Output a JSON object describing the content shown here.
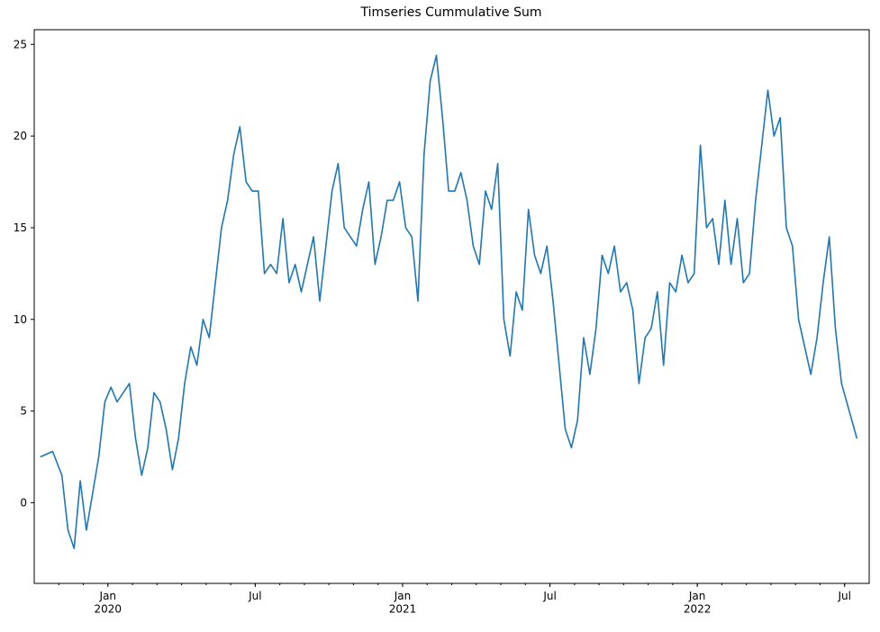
{
  "chart_data": {
    "type": "line",
    "title": "Timseries Cummulative Sum",
    "x": [
      "2019-10",
      "2019-10",
      "2019-11",
      "2019-11",
      "2019-11",
      "2019-11",
      "2019-12",
      "2019-12",
      "2019-12",
      "2019-12",
      "2020-01",
      "2020-01",
      "2020-01",
      "2020-01",
      "2020-02",
      "2020-02",
      "2020-02",
      "2020-02",
      "2020-03",
      "2020-03",
      "2020-03",
      "2020-03",
      "2020-04",
      "2020-04",
      "2020-04",
      "2020-04",
      "2020-05",
      "2020-05",
      "2020-05",
      "2020-05",
      "2020-06",
      "2020-06",
      "2020-06",
      "2020-06",
      "2020-07",
      "2020-07",
      "2020-07",
      "2020-07",
      "2020-08",
      "2020-08",
      "2020-08",
      "2020-08",
      "2020-09",
      "2020-09",
      "2020-09",
      "2020-09",
      "2020-10",
      "2020-10",
      "2020-10",
      "2020-10",
      "2020-11",
      "2020-11",
      "2020-11",
      "2020-11",
      "2020-12",
      "2020-12",
      "2020-12",
      "2020-12",
      "2021-01",
      "2021-01",
      "2021-01",
      "2021-01",
      "2021-02",
      "2021-02",
      "2021-02",
      "2021-02",
      "2021-03",
      "2021-03",
      "2021-03",
      "2021-03",
      "2021-04",
      "2021-04",
      "2021-04",
      "2021-04",
      "2021-05",
      "2021-05",
      "2021-05",
      "2021-05",
      "2021-06",
      "2021-06",
      "2021-06",
      "2021-06",
      "2021-07",
      "2021-07",
      "2021-07",
      "2021-07",
      "2021-08",
      "2021-08",
      "2021-08",
      "2021-08",
      "2021-09",
      "2021-09",
      "2021-09",
      "2021-09",
      "2021-10",
      "2021-10",
      "2021-10",
      "2021-10",
      "2021-11",
      "2021-11",
      "2021-11",
      "2021-11",
      "2021-12",
      "2021-12",
      "2021-12",
      "2021-12",
      "2022-01",
      "2022-01",
      "2022-01",
      "2022-01",
      "2022-02",
      "2022-02",
      "2022-02",
      "2022-02",
      "2022-03",
      "2022-03",
      "2022-03",
      "2022-03",
      "2022-04",
      "2022-04",
      "2022-04",
      "2022-04",
      "2022-05",
      "2022-05",
      "2022-05",
      "2022-05",
      "2022-06",
      "2022-06",
      "2022-06",
      "2022-06",
      "2022-07"
    ],
    "series": [
      {
        "color": "#1f77b4",
        "values": [
          2.5,
          2.8,
          1.5,
          -1.5,
          -2.5,
          1.2,
          -1.5,
          0.5,
          2.5,
          5.5,
          6.3,
          5.5,
          6.0,
          6.5,
          3.5,
          1.5,
          3.0,
          6.0,
          5.5,
          4.0,
          1.8,
          3.5,
          6.5,
          8.5,
          7.5,
          10.0,
          9.0,
          12.0,
          15.0,
          16.5,
          19.0,
          20.5,
          17.5,
          17.0,
          17.0,
          12.5,
          13.0,
          12.5,
          15.5,
          12.0,
          13.0,
          11.5,
          13.0,
          14.5,
          11.0,
          14.0,
          17.0,
          18.5,
          15.0,
          14.5,
          14.0,
          16.0,
          17.5,
          13.0,
          14.5,
          16.5,
          16.5,
          17.5,
          15.0,
          14.5,
          11.0,
          19.0,
          23.0,
          24.4,
          21.0,
          17.0,
          17.0,
          18.0,
          16.5,
          14.0,
          13.0,
          17.0,
          16.0,
          18.5,
          10.0,
          8.0,
          11.5,
          10.5,
          16.0,
          13.5,
          12.5,
          14.0,
          11.0,
          7.5,
          4.0,
          3.0,
          4.5,
          9.0,
          7.0,
          9.5,
          13.5,
          12.5,
          14.0,
          11.5,
          12.0,
          10.5,
          6.5,
          9.0,
          9.5,
          11.5,
          7.5,
          12.0,
          11.5,
          13.5,
          12.0,
          12.5,
          19.5,
          15.0,
          15.5,
          13.0,
          16.5,
          13.0,
          15.5,
          12.0,
          12.5,
          16.5,
          19.5,
          22.5,
          20.0,
          21.0,
          15.0,
          14.0,
          10.0,
          8.5,
          7.0,
          9.0,
          12.0,
          14.5,
          9.5,
          6.5,
          3.5
        ]
      }
    ],
    "xlim": [
      "2019-10",
      "2022-07"
    ],
    "xticks": [
      {
        "value": "2020-01",
        "label": "Jan\n2020"
      },
      {
        "value": "2020-07",
        "label": "Jul"
      },
      {
        "value": "2021-01",
        "label": "Jan\n2021"
      },
      {
        "value": "2021-07",
        "label": "Jul"
      },
      {
        "value": "2022-01",
        "label": "Jan\n2022"
      },
      {
        "value": "2022-07",
        "label": "Jul"
      }
    ],
    "ylim": [
      -4.4,
      25.8
    ],
    "yticks": [
      0,
      5,
      10,
      15,
      20,
      25
    ]
  }
}
